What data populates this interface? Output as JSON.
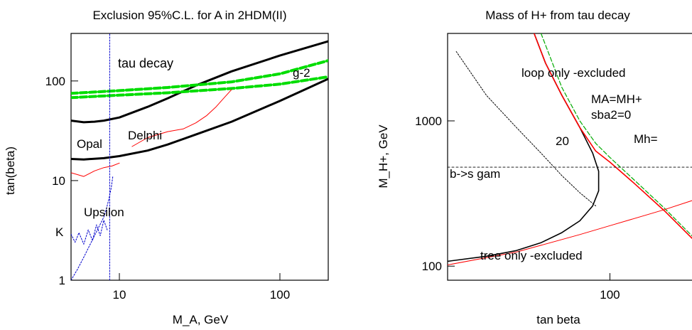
{
  "chart_data": [
    {
      "type": "line",
      "title": "Exclusion 95%C.L. for A in 2HDM(II)",
      "xlabel": "M_A,  GeV",
      "ylabel": "tan(beta)",
      "xscale": "log",
      "yscale": "log",
      "xlim": [
        5,
        200
      ],
      "ylim": [
        1,
        300
      ],
      "xticks": [
        10,
        100
      ],
      "xticklabels": [
        "10",
        "100"
      ],
      "yticks": [
        1,
        10,
        100
      ],
      "yticklabels": [
        "1",
        "10",
        "100"
      ],
      "annotations": [
        "tau decay",
        "g-2",
        "Opal",
        "Delphi",
        "Upsilon",
        "K"
      ],
      "series": [
        {
          "label_ref": "tau decay",
          "color": "#000000",
          "style": "solid-thick",
          "x": [
            5,
            6,
            7,
            8,
            10,
            15,
            20,
            30,
            50,
            100,
            200
          ],
          "y": [
            40,
            38.5,
            39,
            40,
            43,
            55,
            67,
            90,
            125,
            180,
            250
          ]
        },
        {
          "label_ref": "tau decay",
          "color": "#000000",
          "style": "solid-thick",
          "x": [
            5,
            6,
            8,
            10,
            15,
            20,
            30,
            50,
            100,
            200
          ],
          "y": [
            16.5,
            16.3,
            16.8,
            17.6,
            20,
            23,
            29,
            39,
            63,
            105
          ]
        },
        {
          "label_ref": "g-2",
          "color": "#00dd00",
          "style": "dashed-thick",
          "x": [
            5,
            10,
            20,
            50,
            100,
            200
          ],
          "y": [
            75,
            80,
            86,
            98,
            118,
            160
          ]
        },
        {
          "label_ref": "g-2",
          "color": "#00dd00",
          "style": "dashed-thick",
          "x": [
            5,
            10,
            20,
            50,
            100,
            200
          ],
          "y": [
            68,
            72,
            76,
            84,
            93,
            110
          ]
        },
        {
          "label_ref": "Opal",
          "color": "#ff0000",
          "style": "solid-thin",
          "x": [
            5,
            6,
            7,
            8,
            9,
            10
          ],
          "y": [
            12,
            11,
            12.5,
            13.5,
            14,
            15
          ]
        },
        {
          "label_ref": "Delphi",
          "color": "#ff0000",
          "style": "solid-thin",
          "x": [
            12,
            15,
            20,
            25,
            30,
            35,
            40,
            45,
            50
          ],
          "y": [
            22,
            27,
            31,
            33,
            38,
            45,
            55,
            68,
            82
          ]
        },
        {
          "label_ref": "Upsilon",
          "color": "#0000cc",
          "style": "dotted",
          "x": [
            5,
            5.5,
            6,
            6.5,
            7,
            7.5,
            8,
            8.3,
            8.6,
            8.9,
            9.1
          ],
          "y": [
            1,
            1.3,
            1.7,
            2.2,
            2.8,
            3.5,
            4.3,
            5.2,
            6.5,
            8.5,
            11
          ]
        },
        {
          "label_ref": "K",
          "color": "#0000cc",
          "style": "dotted",
          "x": [
            5,
            5.3,
            5.6,
            6,
            6.4,
            6.8,
            7.2,
            7.6,
            8,
            8.4
          ],
          "y": [
            2.9,
            2.4,
            3.0,
            2.3,
            3.2,
            2.5,
            3.6,
            2.8,
            4.0,
            3.2
          ]
        },
        {
          "label_ref": "",
          "color": "#0000cc",
          "style": "dotted",
          "x": [
            8.7,
            8.7
          ],
          "y": [
            1,
            300
          ]
        }
      ]
    },
    {
      "type": "line",
      "title": "Mass of H+ from tau decay",
      "xlabel": "tan beta",
      "ylabel": "M_H+,  GeV",
      "xscale": "log",
      "yscale": "log",
      "xlim": [
        30,
        200
      ],
      "ylim": [
        80,
        4000
      ],
      "xticks": [
        100
      ],
      "xticklabels": [
        "100"
      ],
      "yticks": [
        100,
        1000
      ],
      "yticklabels": [
        "100",
        "1000"
      ],
      "annotations": [
        "loop only -excluded",
        "MA=MH+",
        "sba2=0",
        "Mh=",
        "20",
        "b->s gam",
        "tree only -excluded"
      ],
      "series": [
        {
          "label_ref": "",
          "color": "#000000",
          "style": "solid",
          "x": [
            57,
            62,
            70,
            80,
            88,
            92,
            92,
            88,
            80,
            70,
            60,
            50,
            40,
            30
          ],
          "y": [
            4000,
            2500,
            1500,
            900,
            600,
            450,
            330,
            260,
            205,
            170,
            145,
            128,
            117,
            108
          ]
        },
        {
          "label_ref": "",
          "color": "#ff0000",
          "style": "solid",
          "x": [
            57,
            62,
            70,
            80,
            90,
            100,
            120,
            150,
            200
          ],
          "y": [
            4000,
            2500,
            1500,
            900,
            620,
            520,
            370,
            240,
            130
          ]
        },
        {
          "label_ref": "",
          "color": "#00aa00",
          "style": "dashed",
          "x": [
            60,
            70,
            80,
            90,
            100,
            120,
            150,
            200
          ],
          "y": [
            4000,
            1700,
            1000,
            700,
            560,
            390,
            250,
            135
          ]
        },
        {
          "label_ref": "",
          "color": "#ff0000",
          "style": "solid-thin",
          "x": [
            30,
            50,
            80,
            100,
            150,
            200
          ],
          "y": [
            102,
            125,
            165,
            190,
            245,
            300
          ]
        },
        {
          "label_ref": "",
          "color": "#000000",
          "style": "dotted",
          "x": [
            32,
            40,
            50,
            60,
            70,
            80,
            90
          ],
          "y": [
            3000,
            1500,
            900,
            600,
            420,
            320,
            260
          ]
        },
        {
          "label_ref": "b->s gam",
          "color": "#000000",
          "style": "dashed-thin",
          "x": [
            30,
            200
          ],
          "y": [
            480,
            480
          ]
        }
      ]
    }
  ]
}
